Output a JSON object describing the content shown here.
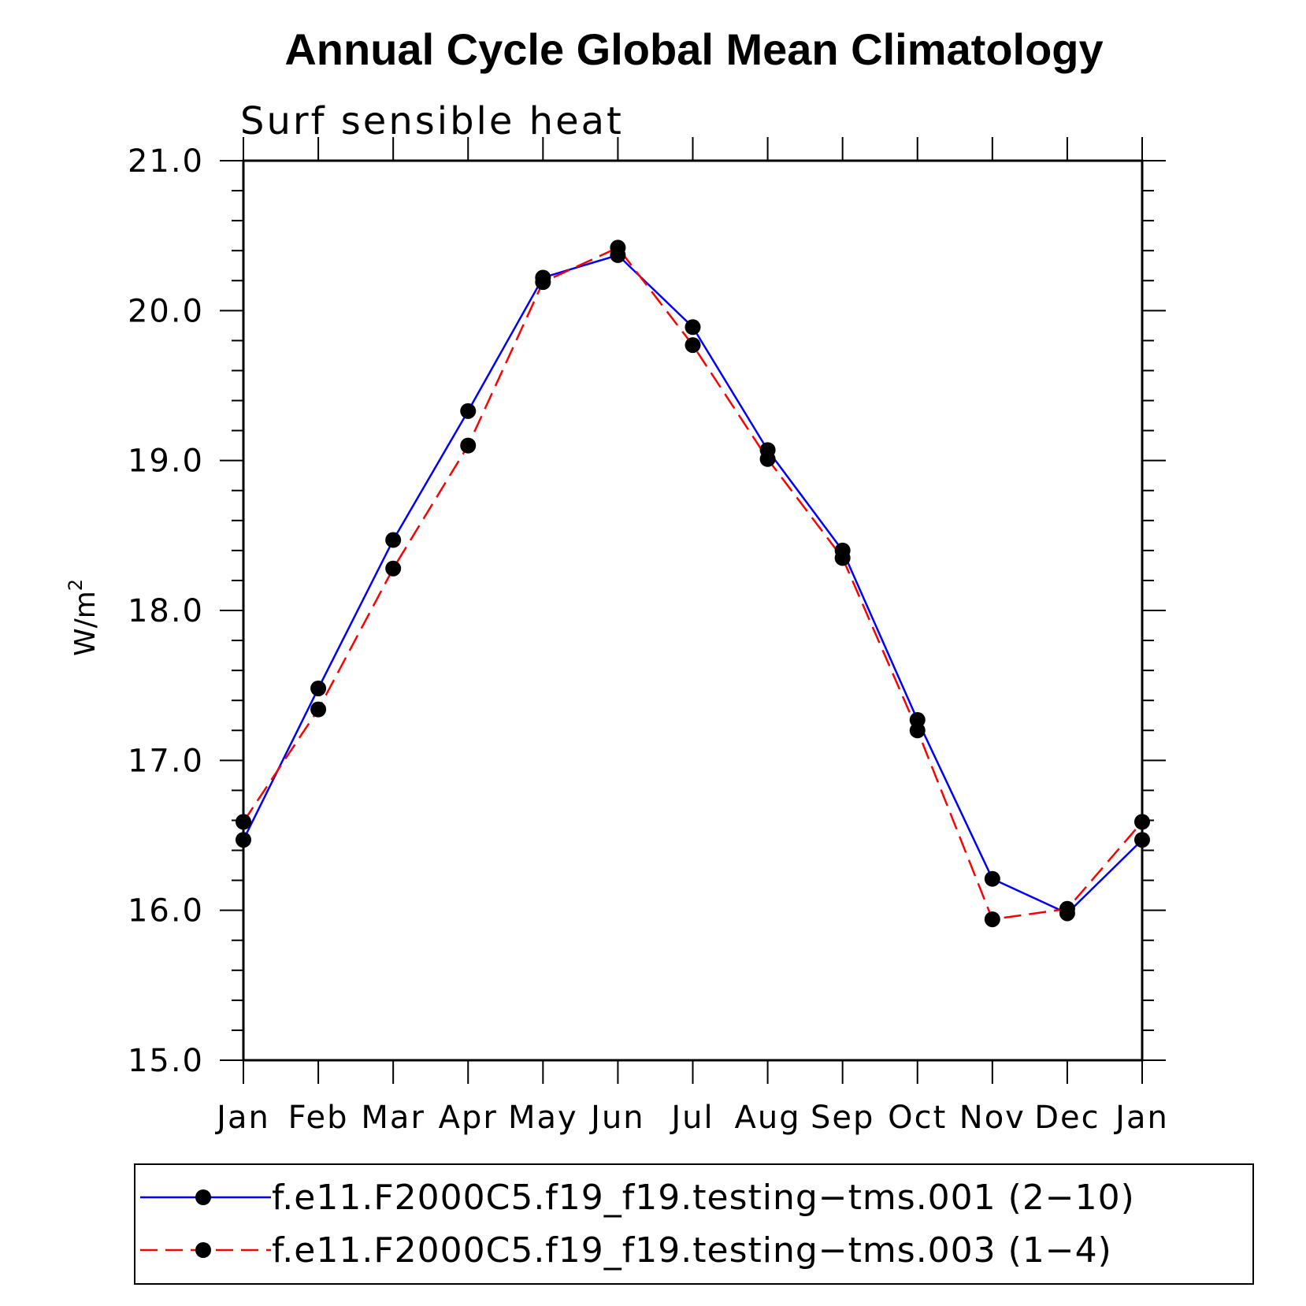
{
  "chart_data": {
    "type": "line",
    "title": "Annual Cycle Global Mean Climatology",
    "subtitle": "Surf sensible heat",
    "ylabel": "W/m",
    "ylabel_superscript": "2",
    "ylim": [
      15.0,
      21.0
    ],
    "yticks": [
      "15.0",
      "16.0",
      "17.0",
      "18.0",
      "19.0",
      "20.0",
      "21.0"
    ],
    "categories": [
      "Jan",
      "Feb",
      "Mar",
      "Apr",
      "May",
      "Jun",
      "Jul",
      "Aug",
      "Sep",
      "Oct",
      "Nov",
      "Dec",
      "Jan"
    ],
    "grid": false,
    "legend_position": "bottom",
    "series": [
      {
        "name": "f.e11.F2000C5.f19_f19.testing−tms.001 (2−10)",
        "color": "#0000ff",
        "style": "solid",
        "marker": "circle",
        "values": [
          16.47,
          17.48,
          18.47,
          19.33,
          20.22,
          20.37,
          19.89,
          19.07,
          18.4,
          17.27,
          16.21,
          15.98,
          16.47
        ]
      },
      {
        "name": "f.e11.F2000C5.f19_f19.testing−tms.003 (1−4)",
        "color": "#ff0000",
        "style": "dashed",
        "marker": "circle",
        "values": [
          16.59,
          17.34,
          18.28,
          19.1,
          20.19,
          20.42,
          19.77,
          19.01,
          18.35,
          17.2,
          15.94,
          16.01,
          16.59
        ]
      }
    ]
  }
}
